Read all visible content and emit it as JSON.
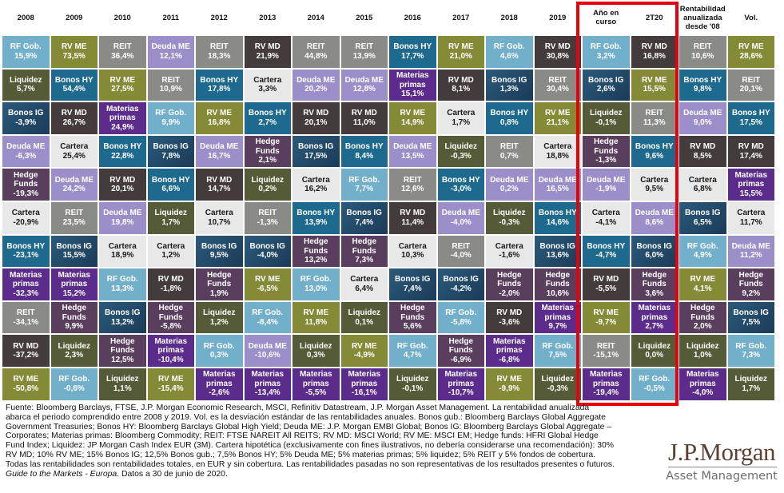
{
  "asset_colors": {
    "RF Gob.": "#72afca",
    "RV ME": "#858a36",
    "REIT": "#8a8a86",
    "Deuda ME": "#9c8ec9",
    "Liquidez": "#555b37",
    "Bonos HY": "#1e6a8e",
    "RV MD": "#433b3c",
    "Bonos IG": "#224d6e",
    "Materias primas": "#5b2c8b",
    "Cartera": "#e8e8e8",
    "Hedge Funds": "#5a3e5e"
  },
  "chart_data": {
    "type": "table",
    "title": "",
    "columns": [
      {
        "header": "2008",
        "cells": [
          [
            "RF Gob.",
            "15,9%"
          ],
          [
            "Liquidez",
            "5,7%"
          ],
          [
            "Bonos IG",
            "-3,9%"
          ],
          [
            "Deuda ME",
            "-6,3%"
          ],
          [
            "Hedge Funds",
            "-19,3%"
          ],
          [
            "Cartera",
            "-20,9%"
          ],
          [
            "Bonos HY",
            "-23,1%"
          ],
          [
            "Materias primas",
            "-32,3%"
          ],
          [
            "REIT",
            "-34,1%"
          ],
          [
            "RV MD",
            "-37,2%"
          ],
          [
            "RV ME",
            "-50,8%"
          ]
        ]
      },
      {
        "header": "2009",
        "cells": [
          [
            "RV ME",
            "73,5%"
          ],
          [
            "Bonos HY",
            "54,4%"
          ],
          [
            "RV MD",
            "26,7%"
          ],
          [
            "Cartera",
            "25,4%"
          ],
          [
            "Deuda ME",
            "24,2%"
          ],
          [
            "REIT",
            "23,5%"
          ],
          [
            "Bonos IG",
            "15,5%"
          ],
          [
            "Materias primas",
            "15,2%"
          ],
          [
            "Hedge Funds",
            "9,9%"
          ],
          [
            "Liquidez",
            "2,3%"
          ],
          [
            "RF Gob.",
            "-0,6%"
          ]
        ]
      },
      {
        "header": "2010",
        "cells": [
          [
            "REIT",
            "36,4%"
          ],
          [
            "RV ME",
            "27,5%"
          ],
          [
            "Materias primas",
            "24,9%"
          ],
          [
            "Bonos HY",
            "22,8%"
          ],
          [
            "RV MD",
            "20,1%"
          ],
          [
            "Deuda ME",
            "19,8%"
          ],
          [
            "Cartera",
            "18,9%"
          ],
          [
            "RF Gob.",
            "13,3%"
          ],
          [
            "Bonos IG",
            "13,2%"
          ],
          [
            "Hedge Funds",
            "12,5%"
          ],
          [
            "Liquidez",
            "1,1%"
          ]
        ]
      },
      {
        "header": "2011",
        "cells": [
          [
            "Deuda ME",
            "12,1%"
          ],
          [
            "REIT",
            "10,9%"
          ],
          [
            "RF Gob.",
            "9,9%"
          ],
          [
            "Bonos IG",
            "7,8%"
          ],
          [
            "Bonos HY",
            "6,6%"
          ],
          [
            "Liquidez",
            "1,7%"
          ],
          [
            "Cartera",
            "1,2%"
          ],
          [
            "RV MD",
            "-1,8%"
          ],
          [
            "Hedge Funds",
            "-5,8%"
          ],
          [
            "Materias primas",
            "-10,4%"
          ],
          [
            "RV ME",
            "-15,4%"
          ]
        ]
      },
      {
        "header": "2012",
        "cells": [
          [
            "REIT",
            "18,3%"
          ],
          [
            "Bonos HY",
            "17,8%"
          ],
          [
            "RV ME",
            "16,8%"
          ],
          [
            "Deuda ME",
            "16,7%"
          ],
          [
            "RV MD",
            "14,7%"
          ],
          [
            "Cartera",
            "10,7%"
          ],
          [
            "Bonos IG",
            "9,5%"
          ],
          [
            "Hedge Funds",
            "1,9%"
          ],
          [
            "Liquidez",
            "1,2%"
          ],
          [
            "RF Gob.",
            "0,3%"
          ],
          [
            "Materias primas",
            "-2,6%"
          ]
        ]
      },
      {
        "header": "2013",
        "cells": [
          [
            "RV MD",
            "21,9%"
          ],
          [
            "Cartera",
            "3,3%"
          ],
          [
            "Bonos HY",
            "2,7%"
          ],
          [
            "Hedge Funds",
            "2,1%"
          ],
          [
            "Liquidez",
            "0,2%"
          ],
          [
            "REIT",
            "-1,3%"
          ],
          [
            "Bonos IG",
            "-4,0%"
          ],
          [
            "RV ME",
            "-6,5%"
          ],
          [
            "RF Gob.",
            "-8,4%"
          ],
          [
            "Deuda ME",
            "-10,6%"
          ],
          [
            "Materias primas",
            "-13,4%"
          ]
        ]
      },
      {
        "header": "2014",
        "cells": [
          [
            "REIT",
            "44,8%"
          ],
          [
            "Deuda ME",
            "20,2%"
          ],
          [
            "RV MD",
            "20,1%"
          ],
          [
            "Bonos IG",
            "17,5%"
          ],
          [
            "Cartera",
            "16,2%"
          ],
          [
            "Bonos HY",
            "13,9%"
          ],
          [
            "Hedge Funds",
            "13,2%"
          ],
          [
            "RF Gob.",
            "13,0%"
          ],
          [
            "RV ME",
            "11,8%"
          ],
          [
            "Liquidez",
            "0,3%"
          ],
          [
            "Materias primas",
            "-5,5%"
          ]
        ]
      },
      {
        "header": "2015",
        "cells": [
          [
            "REIT",
            "13,9%"
          ],
          [
            "Deuda ME",
            "12,8%"
          ],
          [
            "RV MD",
            "11,0%"
          ],
          [
            "Bonos HY",
            "8,4%"
          ],
          [
            "RF Gob.",
            "7,7%"
          ],
          [
            "Bonos IG",
            "7,4%"
          ],
          [
            "Hedge Funds",
            "7,3%"
          ],
          [
            "Cartera",
            "6,4%"
          ],
          [
            "Liquidez",
            "0,1%"
          ],
          [
            "RV ME",
            "-4,9%"
          ],
          [
            "Materias primas",
            "-16,1%"
          ]
        ]
      },
      {
        "header": "2016",
        "cells": [
          [
            "Bonos HY",
            "17,7%"
          ],
          [
            "Materias primas",
            "15,1%"
          ],
          [
            "RV ME",
            "14,9%"
          ],
          [
            "Deuda ME",
            "13,5%"
          ],
          [
            "REIT",
            "12,6%"
          ],
          [
            "RV MD",
            "11,4%"
          ],
          [
            "Cartera",
            "10,3%"
          ],
          [
            "Bonos IG",
            "7,4%"
          ],
          [
            "Hedge Funds",
            "5,6%"
          ],
          [
            "RF Gob.",
            "4,7%"
          ],
          [
            "Liquidez",
            "-0,1%"
          ]
        ]
      },
      {
        "header": "2017",
        "cells": [
          [
            "RV ME",
            "21,0%"
          ],
          [
            "RV MD",
            "8,1%"
          ],
          [
            "Cartera",
            "1,7%"
          ],
          [
            "Liquidez",
            "-0,3%"
          ],
          [
            "Bonos HY",
            "-3,0%"
          ],
          [
            "Deuda ME",
            "-4,0%"
          ],
          [
            "REIT",
            "-4,0%"
          ],
          [
            "Bonos IG",
            "-4,2%"
          ],
          [
            "RF Gob.",
            "-5,8%"
          ],
          [
            "Hedge Funds",
            "-6,9%"
          ],
          [
            "Materias primas",
            "-10,7%"
          ]
        ]
      },
      {
        "header": "2018",
        "cells": [
          [
            "RF Gob.",
            "4,6%"
          ],
          [
            "Bonos IG",
            "1,3%"
          ],
          [
            "Bonos HY",
            "0,8%"
          ],
          [
            "REIT",
            "0,7%"
          ],
          [
            "Deuda ME",
            "0,2%"
          ],
          [
            "Liquidez",
            "-0,3%"
          ],
          [
            "Cartera",
            "-1,6%"
          ],
          [
            "Hedge Funds",
            "-2,0%"
          ],
          [
            "RV MD",
            "-3,6%"
          ],
          [
            "Materias primas",
            "-6,8%"
          ],
          [
            "RV ME",
            "-9,9%"
          ]
        ]
      },
      {
        "header": "2019",
        "cells": [
          [
            "RV MD",
            "30,8%"
          ],
          [
            "REIT",
            "30,4%"
          ],
          [
            "RV ME",
            "21,1%"
          ],
          [
            "Cartera",
            "18,8%"
          ],
          [
            "Deuda ME",
            "16,5%"
          ],
          [
            "Bonos HY",
            "14,6%"
          ],
          [
            "Bonos IG",
            "13,6%"
          ],
          [
            "Hedge Funds",
            "10,6%"
          ],
          [
            "Materias primas",
            "9,7%"
          ],
          [
            "RF Gob.",
            "7,5%"
          ],
          [
            "Liquidez",
            "-0,3%"
          ]
        ]
      },
      {
        "header": "Año en curso",
        "cells": [
          [
            "RF Gob.",
            "3,2%"
          ],
          [
            "Bonos IG",
            "2,6%"
          ],
          [
            "Liquidez",
            "-0,1%"
          ],
          [
            "Hedge Funds",
            "-1,3%"
          ],
          [
            "Deuda ME",
            "-1,9%"
          ],
          [
            "Cartera",
            "-4,1%"
          ],
          [
            "Bonos HY",
            "-4,7%"
          ],
          [
            "RV MD",
            "-5,5%"
          ],
          [
            "RV ME",
            "-9,7%"
          ],
          [
            "REIT",
            "-15,1%"
          ],
          [
            "Materias primas",
            "-19,4%"
          ]
        ]
      },
      {
        "header": "2T20",
        "cells": [
          [
            "RV MD",
            "16,8%"
          ],
          [
            "RV ME",
            "15,5%"
          ],
          [
            "REIT",
            "11,3%"
          ],
          [
            "Bonos HY",
            "9,6%"
          ],
          [
            "Cartera",
            "9,5%"
          ],
          [
            "Deuda ME",
            "8,6%"
          ],
          [
            "Bonos IG",
            "6,0%"
          ],
          [
            "Hedge Funds",
            "3,6%"
          ],
          [
            "Materias primas",
            "2,7%"
          ],
          [
            "Liquidez",
            "0,0%"
          ],
          [
            "RF Gob.",
            "-0,5%"
          ]
        ]
      },
      {
        "header": "Rentabilidad\nanualizada\ndesde '08",
        "cells": [
          [
            "REIT",
            "10,6%"
          ],
          [
            "Bonos HY",
            "9,8%"
          ],
          [
            "Deuda ME",
            "9,0%"
          ],
          [
            "RV MD",
            "8,5%"
          ],
          [
            "Cartera",
            "6,8%"
          ],
          [
            "Bonos IG",
            "6,5%"
          ],
          [
            "RF Gob.",
            "4,9%"
          ],
          [
            "RV ME",
            "4,1%"
          ],
          [
            "Hedge Funds",
            "2,0%"
          ],
          [
            "Liquidez",
            "1,0%"
          ],
          [
            "Materias primas",
            "-4,0%"
          ]
        ]
      },
      {
        "header": "Vol.",
        "cells": [
          [
            "RV ME",
            "28,6%"
          ],
          [
            "REIT",
            "20,1%"
          ],
          [
            "Bonos HY",
            "17,5%"
          ],
          [
            "RV MD",
            "17,4%"
          ],
          [
            "Materias primas",
            "15,5%"
          ],
          [
            "Cartera",
            "11,7%"
          ],
          [
            "Deuda ME",
            "11,2%"
          ],
          [
            "Hedge Funds",
            "9,2%"
          ],
          [
            "Bonos IG",
            "7,5%"
          ],
          [
            "RF Gob.",
            "7,3%"
          ],
          [
            "Liquidez",
            "1,7%"
          ]
        ]
      }
    ]
  },
  "highlight_color": "#e8000b",
  "footer": {
    "lines": [
      "Fuente: Bloomberg Barclays, FTSE, J.P. Morgan Economic Research, MSCI, Refinitiv Datastream, J.P. Morgan Asset Management. La rentabilidad anualizada",
      "abarca el periodo comprendido entre 2008 y 2019. Vol. es la desviación estándar de las rentabilidades anuales. Bonos gub.: Bloomberg Barclays Global Aggregate",
      "Government Treasuries; Bonos HY: Bloomberg Barclays Global High Yield; Deuda ME: J.P. Morgan EMBI Global; Bonos IG: Bloomberg Barclays Global Aggregate –",
      "Corporates; Materias primas: Bloomberg Commodity; REIT: FTSE NAREIT All REITS; RV MD: MSCI World; RV ME: MSCI EM; Hedge funds: HFRI Global Hedge",
      "Fund Index; Liquidez: JP Morgan Cash Index EUR (3M). Cartera hipotética (exclusivamente con fines ilustrativos, no debería considerarse una recomendación): 30%",
      "RV MD; 10% RV ME; 15% Bonos IG; 12,5% Bonos gub.; 7,5% Bonos HY; 5% Deuda ME; 5% materias primas; 5% liquidez; 5% REIT y 5% fondos de cobertura.",
      "Todas las rentabilidades son rentabilidades totales, en EUR y sin cobertura. Las rentabilidades pasadas no son representativas de los resultados presentes o futuros."
    ],
    "guide_title": "Guide to the Markets - Europa.",
    "date_note": " Datos a 30 de junio de 2020."
  },
  "logo": {
    "brand": "J.P.Morgan",
    "subtitle": "Asset Management"
  }
}
